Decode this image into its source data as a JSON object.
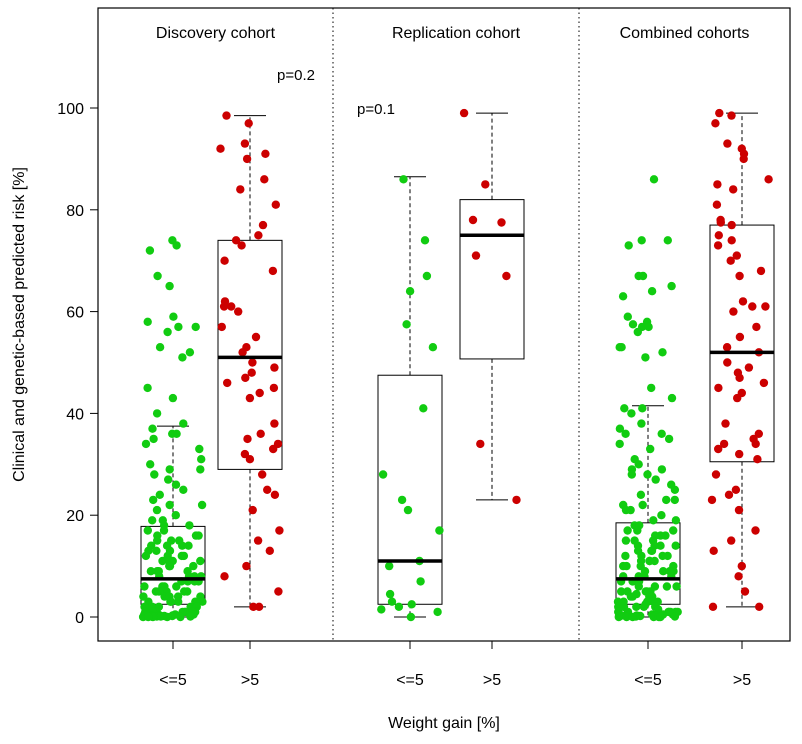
{
  "chart_data": {
    "type": "box",
    "ylabel": "Clinical and genetic-based predicted risk [%]",
    "xlabel": "Weight gain [%]",
    "y_ticks": [
      0,
      20,
      40,
      60,
      80,
      100
    ],
    "grid": false,
    "colors": {
      "le5": "#11cc11",
      "gt5": "#cc0000"
    },
    "panels": [
      {
        "title": "Discovery cohort",
        "pvalue": "p=0.2",
        "groups": [
          {
            "label": "<=5",
            "color": "#11cc11",
            "box": {
              "whisker_low": 0,
              "q1": 2.5,
              "median": 7.5,
              "q3": 17.8,
              "whisker_high": 37.5
            },
            "points": [
              74,
              73,
              72,
              67,
              65,
              59,
              58,
              57,
              57,
              56,
              53,
              52,
              51,
              45,
              43,
              40,
              38,
              37,
              36,
              36,
              35,
              34,
              33,
              31,
              30,
              29,
              29,
              28,
              27,
              26,
              25,
              24,
              23,
              22,
              22,
              21,
              20,
              19,
              19,
              18,
              18,
              17,
              17,
              16,
              16,
              16,
              15,
              15,
              15,
              14,
              14,
              14,
              14,
              13,
              13,
              13,
              12,
              12,
              12,
              12,
              11,
              11,
              11,
              11,
              10,
              10,
              10,
              10,
              9,
              9,
              9,
              9,
              8,
              8,
              8,
              8,
              7,
              7,
              7,
              7,
              6,
              6,
              6,
              6,
              5,
              5,
              5,
              5,
              5,
              4,
              4,
              4,
              4,
              4,
              3,
              3,
              3,
              3,
              3,
              3,
              2,
              2,
              2,
              2,
              2,
              2,
              1,
              1,
              1,
              1,
              1,
              1,
              1,
              1,
              0.5,
              0.5,
              0.5,
              0.5,
              0.5,
              0.3,
              0.3,
              0.3,
              0.3,
              0.2,
              0.2,
              0.2,
              0.1,
              0.1,
              0.1,
              0.1,
              0,
              0,
              0,
              0,
              0
            ]
          },
          {
            "label": ">5",
            "color": "#cc0000",
            "box": {
              "whisker_low": 2,
              "q1": 29,
              "median": 51,
              "q3": 74,
              "whisker_high": 98.5
            },
            "points": [
              98.5,
              97,
              93,
              92,
              91,
              90,
              86,
              84,
              81,
              77,
              75,
              74,
              73,
              70,
              68,
              62,
              61,
              61,
              60,
              57,
              55,
              53,
              52,
              50,
              49,
              48,
              47,
              46,
              45,
              44,
              43,
              38,
              36,
              35,
              34,
              33,
              32,
              31,
              28,
              25,
              24,
              21,
              17,
              15,
              13,
              10,
              8,
              5,
              2,
              2
            ]
          }
        ]
      },
      {
        "title": "Replication cohort",
        "pvalue": "p=0.1",
        "groups": [
          {
            "label": "<=5",
            "color": "#11cc11",
            "box": {
              "whisker_low": 0,
              "q1": 2.5,
              "median": 11,
              "q3": 47.5,
              "whisker_high": 86.5
            },
            "points": [
              86,
              74,
              67,
              64,
              57.5,
              53,
              41,
              28,
              23,
              21,
              17,
              11,
              10,
              7,
              4.5,
              3,
              2.5,
              2,
              1.5,
              1,
              0
            ]
          },
          {
            "label": ">5",
            "color": "#cc0000",
            "box": {
              "whisker_low": 23,
              "q1": 50.7,
              "median": 75,
              "q3": 82,
              "whisker_high": 99
            },
            "points": [
              99,
              85,
              78,
              77.5,
              71,
              67,
              34,
              23
            ]
          }
        ]
      },
      {
        "title": "Combined cohorts",
        "pvalue": "",
        "groups": [
          {
            "label": "<=5",
            "color": "#11cc11",
            "box": {
              "whisker_low": 0,
              "q1": 2.5,
              "median": 7.5,
              "q3": 18.5,
              "whisker_high": 41.5
            },
            "points": [
              86,
              74,
              74,
              73,
              67,
              67,
              65,
              64,
              63,
              59,
              58,
              57.5,
              57,
              57,
              56,
              53,
              53,
              52,
              51,
              45,
              43,
              41,
              41,
              40,
              38,
              37,
              36,
              36,
              35,
              34,
              33,
              31,
              30,
              29,
              29,
              28,
              28,
              27,
              26,
              25,
              24,
              23,
              23,
              22,
              22,
              21,
              21,
              20,
              19,
              19,
              18,
              18,
              17,
              17,
              17,
              16,
              16,
              16,
              15,
              15,
              15,
              14,
              14,
              14,
              14,
              13,
              13,
              13,
              12,
              12,
              12,
              12,
              11,
              11,
              11,
              11,
              10,
              10,
              10,
              10,
              9,
              9,
              9,
              9,
              8,
              8,
              8,
              8,
              7,
              7,
              7,
              7,
              6,
              6,
              6,
              6,
              5,
              5,
              5,
              5,
              5,
              4.5,
              4,
              4,
              4,
              4,
              3,
              3,
              3,
              3,
              3,
              3,
              2.5,
              2,
              2,
              2,
              2,
              2,
              2,
              1.5,
              1,
              1,
              1,
              1,
              1,
              1,
              1,
              0.5,
              0.5,
              0.5,
              0.5,
              0.3,
              0.3,
              0.3,
              0.2,
              0.2,
              0.1,
              0.1,
              0,
              0,
              0,
              0,
              0,
              0
            ]
          },
          {
            "label": ">5",
            "color": "#cc0000",
            "box": {
              "whisker_low": 2,
              "q1": 30.5,
              "median": 52,
              "q3": 77,
              "whisker_high": 99
            },
            "points": [
              99,
              98.5,
              97,
              93,
              92,
              91,
              90,
              86,
              85,
              84,
              81,
              78,
              77.5,
              77,
              75,
              74,
              73,
              71,
              70,
              68,
              67,
              62,
              61,
              61,
              60,
              57,
              55,
              53,
              52,
              50,
              49,
              48,
              47,
              46,
              45,
              44,
              43,
              38,
              36,
              35,
              34,
              34,
              33,
              32,
              31,
              28,
              25,
              24,
              23,
              21,
              17,
              15,
              13,
              10,
              8,
              5,
              2,
              2
            ]
          }
        ]
      }
    ]
  }
}
